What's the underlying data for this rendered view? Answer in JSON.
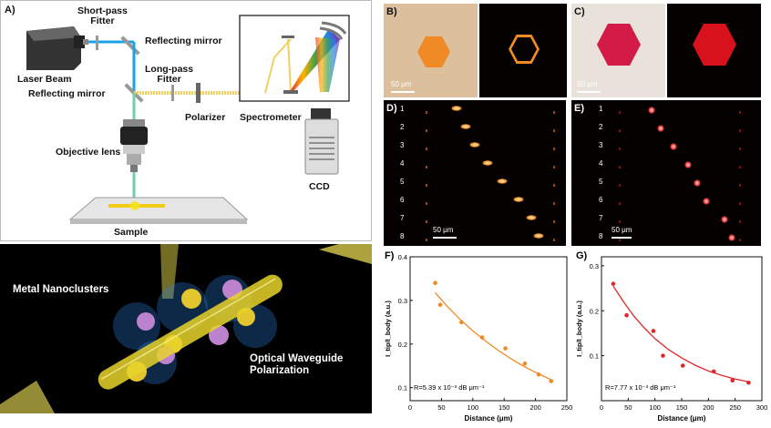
{
  "panel_a": {
    "label": "A)",
    "short_pass": "Short-pass\nFitter",
    "reflecting_mirror_top": "Reflecting mirror",
    "laser_beam": "Laser Beam",
    "long_pass": "Long-pass\nFitter",
    "reflecting_mirror_mid": "Reflecting mirror",
    "polarizer": "Polarizer",
    "spectrometer": "Spectrometer",
    "objective_lens": "Objective lens",
    "ccd": "CCD",
    "sample": "Sample",
    "metal_nanoclusters": "Metal Nanoclusters",
    "waveguide": "Optical Waveguide\nPolarization"
  },
  "panel_b": {
    "label": "B)",
    "scale": "50 μm"
  },
  "panel_c": {
    "label": "C)",
    "scale": "50 μm"
  },
  "panel_d": {
    "label": "D)",
    "scale": "50 μm",
    "rows": [
      "1",
      "2",
      "3",
      "4",
      "5",
      "6",
      "7",
      "8"
    ]
  },
  "panel_e": {
    "label": "E)",
    "scale": "50 μm",
    "rows": [
      "1",
      "2",
      "3",
      "4",
      "5",
      "6",
      "7",
      "8"
    ]
  },
  "colors": {
    "orange": "#f08a24",
    "red": "#e0282a",
    "beam_blue": "#1aa3e8",
    "beam_yellow": "#f0d060"
  },
  "chart_data": [
    {
      "panel_label": "F)",
      "type": "scatter",
      "xlabel": "Distance (μm)",
      "ylabel": "I_tip/I_body (a.u.)",
      "annotation": "R=5.39 x 10⁻³ dB μm⁻¹",
      "xlim": [
        0,
        250
      ],
      "ylim": [
        0.07,
        0.4
      ],
      "xticks": [
        "0",
        "50",
        "100",
        "150",
        "200",
        "250"
      ],
      "yticks": [
        "0.1",
        "0.2",
        "0.3",
        "0.4"
      ],
      "color": "#f08a24",
      "x": [
        40,
        48,
        82,
        115,
        152,
        183,
        205,
        225
      ],
      "y": [
        0.34,
        0.29,
        0.25,
        0.215,
        0.19,
        0.155,
        0.13,
        0.115
      ],
      "fit_x": [
        40,
        60,
        80,
        100,
        120,
        140,
        160,
        180,
        200,
        225
      ],
      "fit_y": [
        0.318,
        0.285,
        0.256,
        0.23,
        0.207,
        0.186,
        0.167,
        0.15,
        0.135,
        0.118
      ]
    },
    {
      "panel_label": "G)",
      "type": "scatter",
      "xlabel": "Distance (μm)",
      "ylabel": "I_tip/I_body (a.u.)",
      "annotation": "R=7.77 x 10⁻³ dB μm⁻¹",
      "xlim": [
        0,
        300
      ],
      "ylim": [
        0.0,
        0.32
      ],
      "xticks": [
        "0",
        "50",
        "100",
        "150",
        "200",
        "250",
        "300"
      ],
      "yticks": [
        "0.1",
        "0.2",
        "0.3"
      ],
      "color": "#e0282a",
      "x": [
        22,
        47,
        97,
        115,
        152,
        210,
        245,
        275
      ],
      "y": [
        0.26,
        0.19,
        0.155,
        0.1,
        0.078,
        0.065,
        0.045,
        0.04
      ],
      "fit_x": [
        22,
        40,
        60,
        80,
        100,
        125,
        150,
        175,
        200,
        225,
        250,
        275
      ],
      "fit_y": [
        0.255,
        0.222,
        0.189,
        0.162,
        0.138,
        0.114,
        0.095,
        0.079,
        0.066,
        0.056,
        0.048,
        0.042
      ]
    }
  ]
}
